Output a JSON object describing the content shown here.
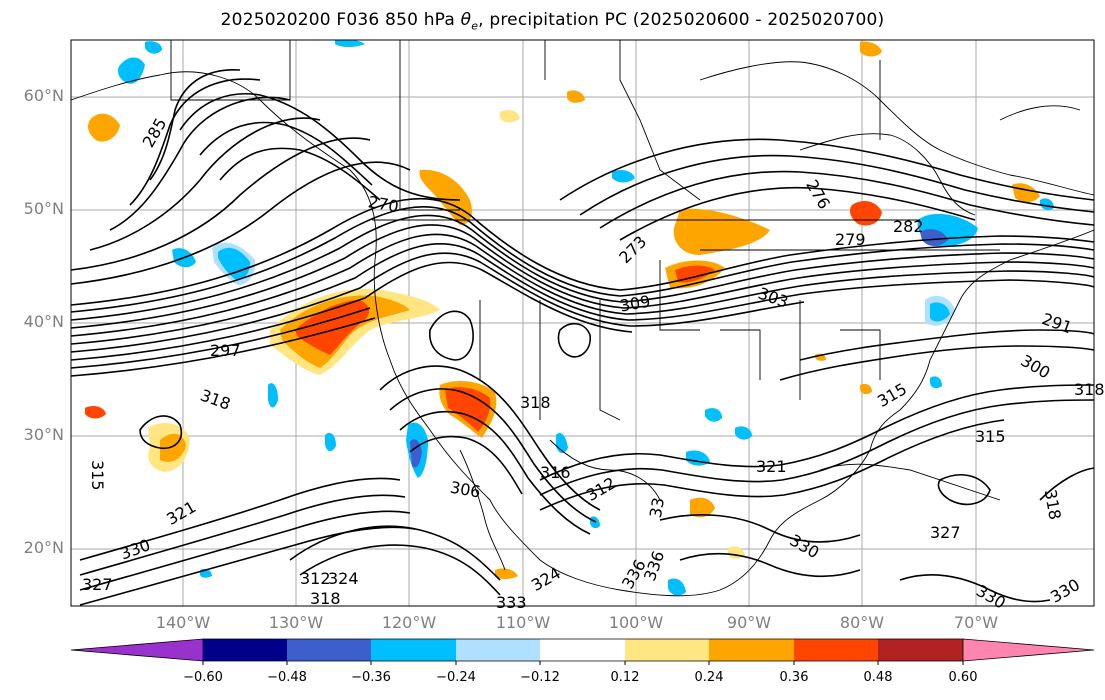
{
  "title_prefix": "2025020200 F036 850 hPa ",
  "title_symbol": "θ",
  "title_subscript": "e",
  "title_suffix": ", precipitation PC (2025020600 - 2025020700)",
  "lat_labels": [
    "60°N",
    "50°N",
    "40°N",
    "30°N",
    "20°N"
  ],
  "lon_labels": [
    "140°W",
    "130°W",
    "120°W",
    "110°W",
    "100°W",
    "90°W",
    "80°W",
    "70°W"
  ],
  "contour_labels": [
    "285",
    "270",
    "273",
    "276",
    "279",
    "282",
    "297",
    "303",
    "309",
    "291",
    "300",
    "318",
    "318",
    "315",
    "316",
    "312",
    "306",
    "321",
    "330",
    "333",
    "324",
    "321",
    "327",
    "336",
    "330",
    "315",
    "327",
    "318",
    "33",
    "330",
    "336",
    "324",
    "312",
    "318",
    "330",
    "315",
    "318"
  ],
  "colorbar": {
    "ticks": [
      "−0.60",
      "−0.48",
      "−0.36",
      "−0.24",
      "−0.12",
      "0.12",
      "0.24",
      "0.36",
      "0.48",
      "0.60"
    ],
    "colors": [
      "#9932cc",
      "#00008b",
      "#3c5fcd",
      "#00bfff",
      "#b0e0ff",
      "#ffffff",
      "#ffe682",
      "#ffa500",
      "#ff4500",
      "#b22222",
      "#ff85b0"
    ]
  }
}
